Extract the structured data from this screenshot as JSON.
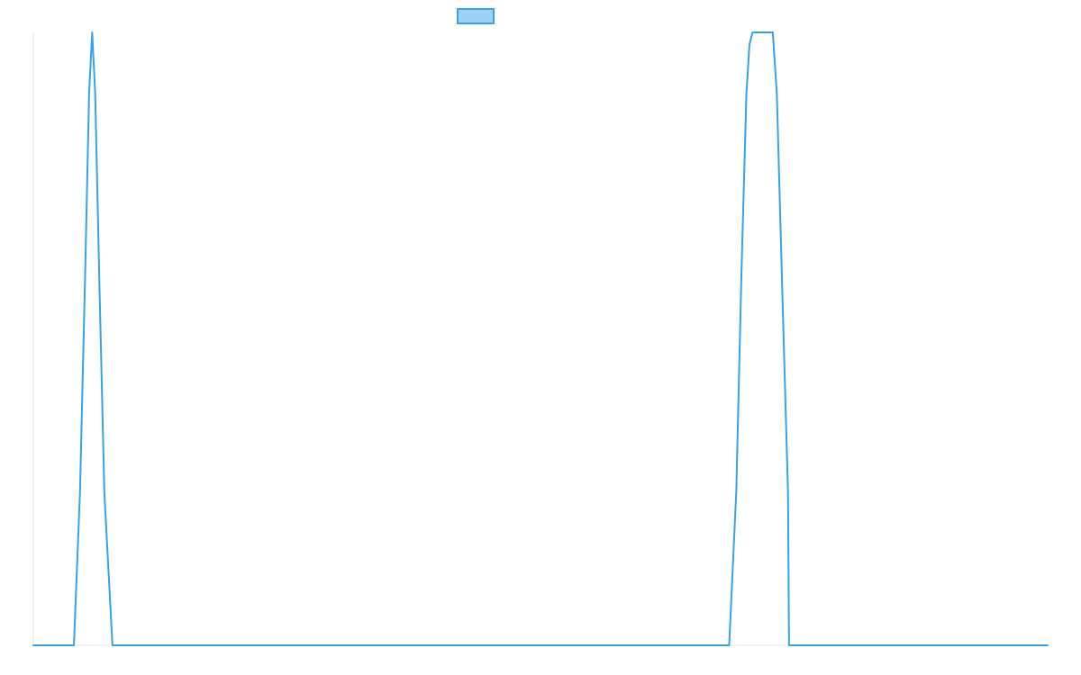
{
  "chart_data": {
    "type": "line",
    "title": "",
    "xlabel": "",
    "ylabel": "",
    "grid": false,
    "legend": {
      "placement": "top-center",
      "entries": [
        {
          "name": "",
          "color": "#36a2eb",
          "fill": "#9fd1f4"
        }
      ]
    },
    "xlim": [
      0,
      100
    ],
    "ylim": [
      0,
      1
    ],
    "series": [
      {
        "name": "",
        "color": "#36a2eb",
        "points": [
          [
            0,
            0
          ],
          [
            4.0,
            0
          ],
          [
            4.6,
            0.25
          ],
          [
            5.1,
            0.6
          ],
          [
            5.5,
            0.9
          ],
          [
            5.8,
            1.0
          ],
          [
            6.1,
            0.9
          ],
          [
            6.5,
            0.6
          ],
          [
            7.0,
            0.25
          ],
          [
            7.8,
            0
          ],
          [
            68.6,
            0
          ],
          [
            69.3,
            0.25
          ],
          [
            69.8,
            0.6
          ],
          [
            70.3,
            0.9
          ],
          [
            70.6,
            0.98
          ],
          [
            70.9,
            1.0
          ],
          [
            72.9,
            1.0
          ],
          [
            73.3,
            0.9
          ],
          [
            73.8,
            0.6
          ],
          [
            74.4,
            0.25
          ],
          [
            74.5,
            0
          ],
          [
            100,
            0
          ]
        ]
      }
    ]
  }
}
